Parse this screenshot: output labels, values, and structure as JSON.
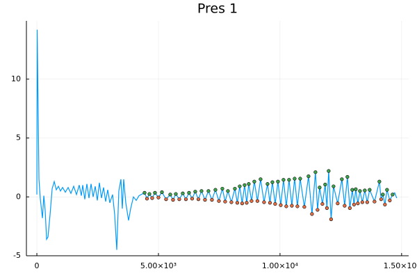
{
  "chart_data": {
    "type": "line",
    "title": "Pres 1",
    "xlim": [
      -430,
      15290
    ],
    "ylim": [
      -5,
      14.95
    ],
    "xticks": [
      {
        "value": 0,
        "label": "0"
      },
      {
        "value": 5000,
        "label": "5.00×10³"
      },
      {
        "value": 10000,
        "label": "1.00×10⁴"
      },
      {
        "value": 15000,
        "label": "1.50×10⁴"
      }
    ],
    "yticks": [
      -5,
      0,
      5,
      10
    ],
    "grid": true,
    "series": [
      {
        "type": "line",
        "color": "#009af9",
        "x": [
          0,
          14,
          86,
          143,
          229,
          286,
          343,
          400,
          457,
          543,
          629,
          714,
          800,
          886,
          971,
          1057,
          1171,
          1286,
          1400,
          1514,
          1629,
          1743,
          1829,
          1886,
          1971,
          2057,
          2143,
          2229,
          2314,
          2400,
          2486,
          2571,
          2657,
          2743,
          2829,
          2914,
          3000,
          3114,
          3200,
          3286,
          3371,
          3457,
          3514,
          3571,
          3657,
          3771,
          3857,
          3971,
          4086,
          4200,
          4429,
          4529,
          4629,
          4743,
          4857,
          5000,
          5143,
          5314,
          5486,
          5600,
          5714,
          5857,
          6000,
          6129,
          6257,
          6386,
          6514,
          6643,
          6771,
          6914,
          7057,
          7200,
          7343,
          7486,
          7629,
          7743,
          7857,
          8000,
          8143,
          8243,
          8343,
          8443,
          8543,
          8629,
          8714,
          8829,
          8943,
          9071,
          9200,
          9343,
          9486,
          9586,
          9686,
          9800,
          9914,
          10029,
          10143,
          10257,
          10371,
          10486,
          10600,
          10714,
          10829,
          11000,
          11171,
          11314,
          11457,
          11543,
          11629,
          11743,
          11857,
          11929,
          12000,
          12100,
          12200,
          12371,
          12543,
          12657,
          12771,
          12871,
          12971,
          13043,
          13114,
          13200,
          13286,
          13386,
          13486,
          13586,
          13686,
          13886,
          14086,
          14157,
          14229,
          14314,
          14400,
          14514,
          14629,
          14714,
          14800
        ],
        "values": [
          0.2,
          14.2,
          1.5,
          -0.2,
          -1.8,
          0.1,
          -1.2,
          -3.6,
          -3.4,
          -1.5,
          0.7,
          1.3,
          0.6,
          0.9,
          0.5,
          0.8,
          0.4,
          0.8,
          0.3,
          0.9,
          0.2,
          1.0,
          0.1,
          1.0,
          -0.2,
          1.1,
          -0.1,
          1.1,
          0.0,
          0.9,
          -0.3,
          1.2,
          -0.1,
          0.8,
          -0.4,
          0.6,
          -0.5,
          0.2,
          -1.5,
          -4.5,
          0.5,
          1.5,
          -1.0,
          1.5,
          -0.5,
          -2.0,
          -1.0,
          0.0,
          -0.3,
          0.1,
          0.35,
          -0.15,
          0.25,
          -0.1,
          0.35,
          -0.05,
          0.4,
          -0.2,
          0.2,
          -0.25,
          0.25,
          -0.2,
          0.3,
          -0.2,
          0.35,
          -0.15,
          0.45,
          -0.2,
          0.5,
          -0.25,
          0.5,
          -0.25,
          0.6,
          -0.35,
          0.7,
          -0.4,
          0.5,
          -0.45,
          0.7,
          -0.5,
          0.9,
          -0.55,
          1.0,
          -0.5,
          1.1,
          -0.35,
          1.3,
          -0.35,
          1.5,
          -0.45,
          1.1,
          -0.5,
          1.25,
          -0.6,
          1.3,
          -0.7,
          1.45,
          -0.8,
          1.45,
          -0.75,
          1.55,
          -0.8,
          1.55,
          -0.85,
          1.75,
          -1.45,
          2.1,
          -1.1,
          0.8,
          -0.6,
          1.05,
          -0.95,
          2.2,
          -1.9,
          0.9,
          -0.55,
          1.5,
          -0.75,
          1.7,
          -0.95,
          0.6,
          -0.65,
          0.65,
          -0.55,
          0.5,
          -0.45,
          0.55,
          -0.45,
          0.6,
          -0.4,
          1.3,
          -0.2,
          0.2,
          -0.65,
          0.6,
          -0.3,
          0.2,
          0.35,
          -0.1
        ]
      },
      {
        "type": "scatter",
        "color": "#3ea44e",
        "x": [
          4429,
          4629,
          4857,
          5143,
          5486,
          5714,
          6000,
          6257,
          6514,
          6771,
          7057,
          7343,
          7629,
          7857,
          8143,
          8343,
          8543,
          8714,
          8943,
          9200,
          9486,
          9686,
          9914,
          10143,
          10371,
          10600,
          10829,
          11171,
          11457,
          11629,
          11857,
          12000,
          12200,
          12543,
          12771,
          12971,
          13114,
          13286,
          13486,
          13686,
          14086,
          14229,
          14400,
          14629
        ],
        "values": [
          0.35,
          0.25,
          0.35,
          0.4,
          0.2,
          0.25,
          0.3,
          0.35,
          0.45,
          0.5,
          0.5,
          0.6,
          0.7,
          0.5,
          0.7,
          0.9,
          1.0,
          1.1,
          1.3,
          1.5,
          1.1,
          1.25,
          1.3,
          1.45,
          1.45,
          1.55,
          1.55,
          1.75,
          2.1,
          0.8,
          1.05,
          2.2,
          0.9,
          1.5,
          1.7,
          0.6,
          0.65,
          0.5,
          0.55,
          0.6,
          1.3,
          0.2,
          0.6,
          0.2
        ]
      },
      {
        "type": "scatter",
        "color": "#e26f46",
        "x": [
          4529,
          4743,
          5000,
          5314,
          5600,
          5857,
          6129,
          6386,
          6643,
          6914,
          7200,
          7486,
          7743,
          8000,
          8243,
          8443,
          8629,
          8829,
          9071,
          9343,
          9586,
          9800,
          10029,
          10257,
          10486,
          10714,
          11000,
          11314,
          11543,
          11743,
          11929,
          12100,
          12371,
          12657,
          12871,
          13043,
          13200,
          13386,
          13586,
          13886,
          14157,
          14314,
          14514
        ],
        "values": [
          -0.15,
          -0.1,
          -0.05,
          -0.2,
          -0.25,
          -0.2,
          -0.2,
          -0.15,
          -0.2,
          -0.25,
          -0.25,
          -0.35,
          -0.4,
          -0.45,
          -0.5,
          -0.55,
          -0.5,
          -0.35,
          -0.35,
          -0.45,
          -0.5,
          -0.6,
          -0.7,
          -0.8,
          -0.75,
          -0.8,
          -0.85,
          -1.45,
          -1.1,
          -0.6,
          -0.95,
          -1.9,
          -0.55,
          -0.75,
          -0.95,
          -0.65,
          -0.55,
          -0.45,
          -0.45,
          -0.4,
          -0.2,
          -0.65,
          -0.3
        ]
      }
    ]
  }
}
